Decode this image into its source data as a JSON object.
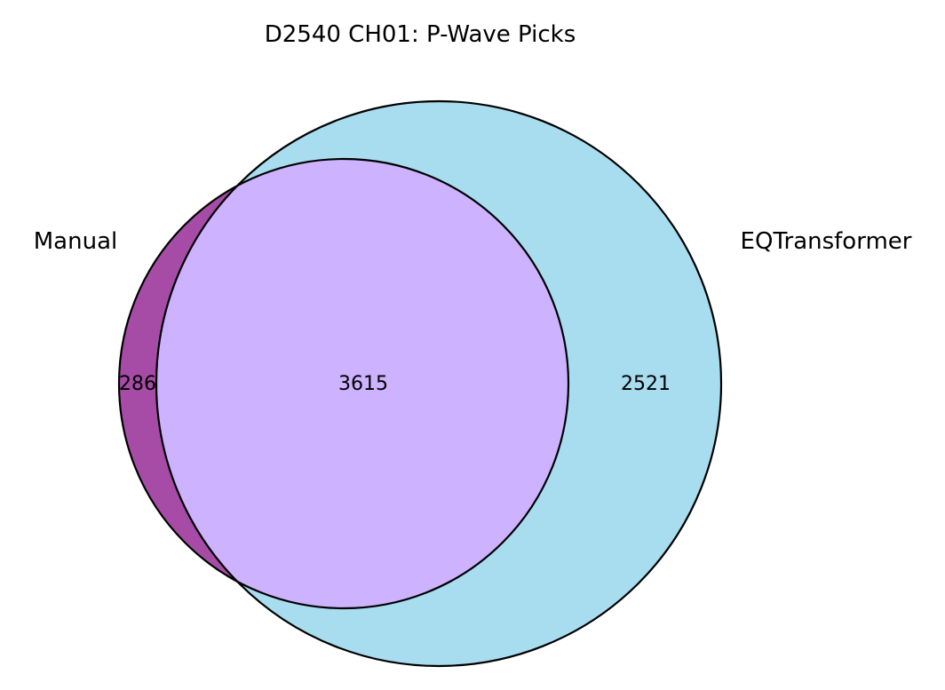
{
  "title": "D2540 CH01: P-Wave Picks",
  "sets": [
    {
      "id": "manual",
      "label": "Manual",
      "color": "#a64ca6"
    },
    {
      "id": "eqt",
      "label": "EQTransformer",
      "color": "#a8dcef"
    }
  ],
  "overlap_color": "#ccb2ff",
  "counts": {
    "manual_only": "286",
    "both": "3615",
    "eqt_only": "2521"
  }
}
